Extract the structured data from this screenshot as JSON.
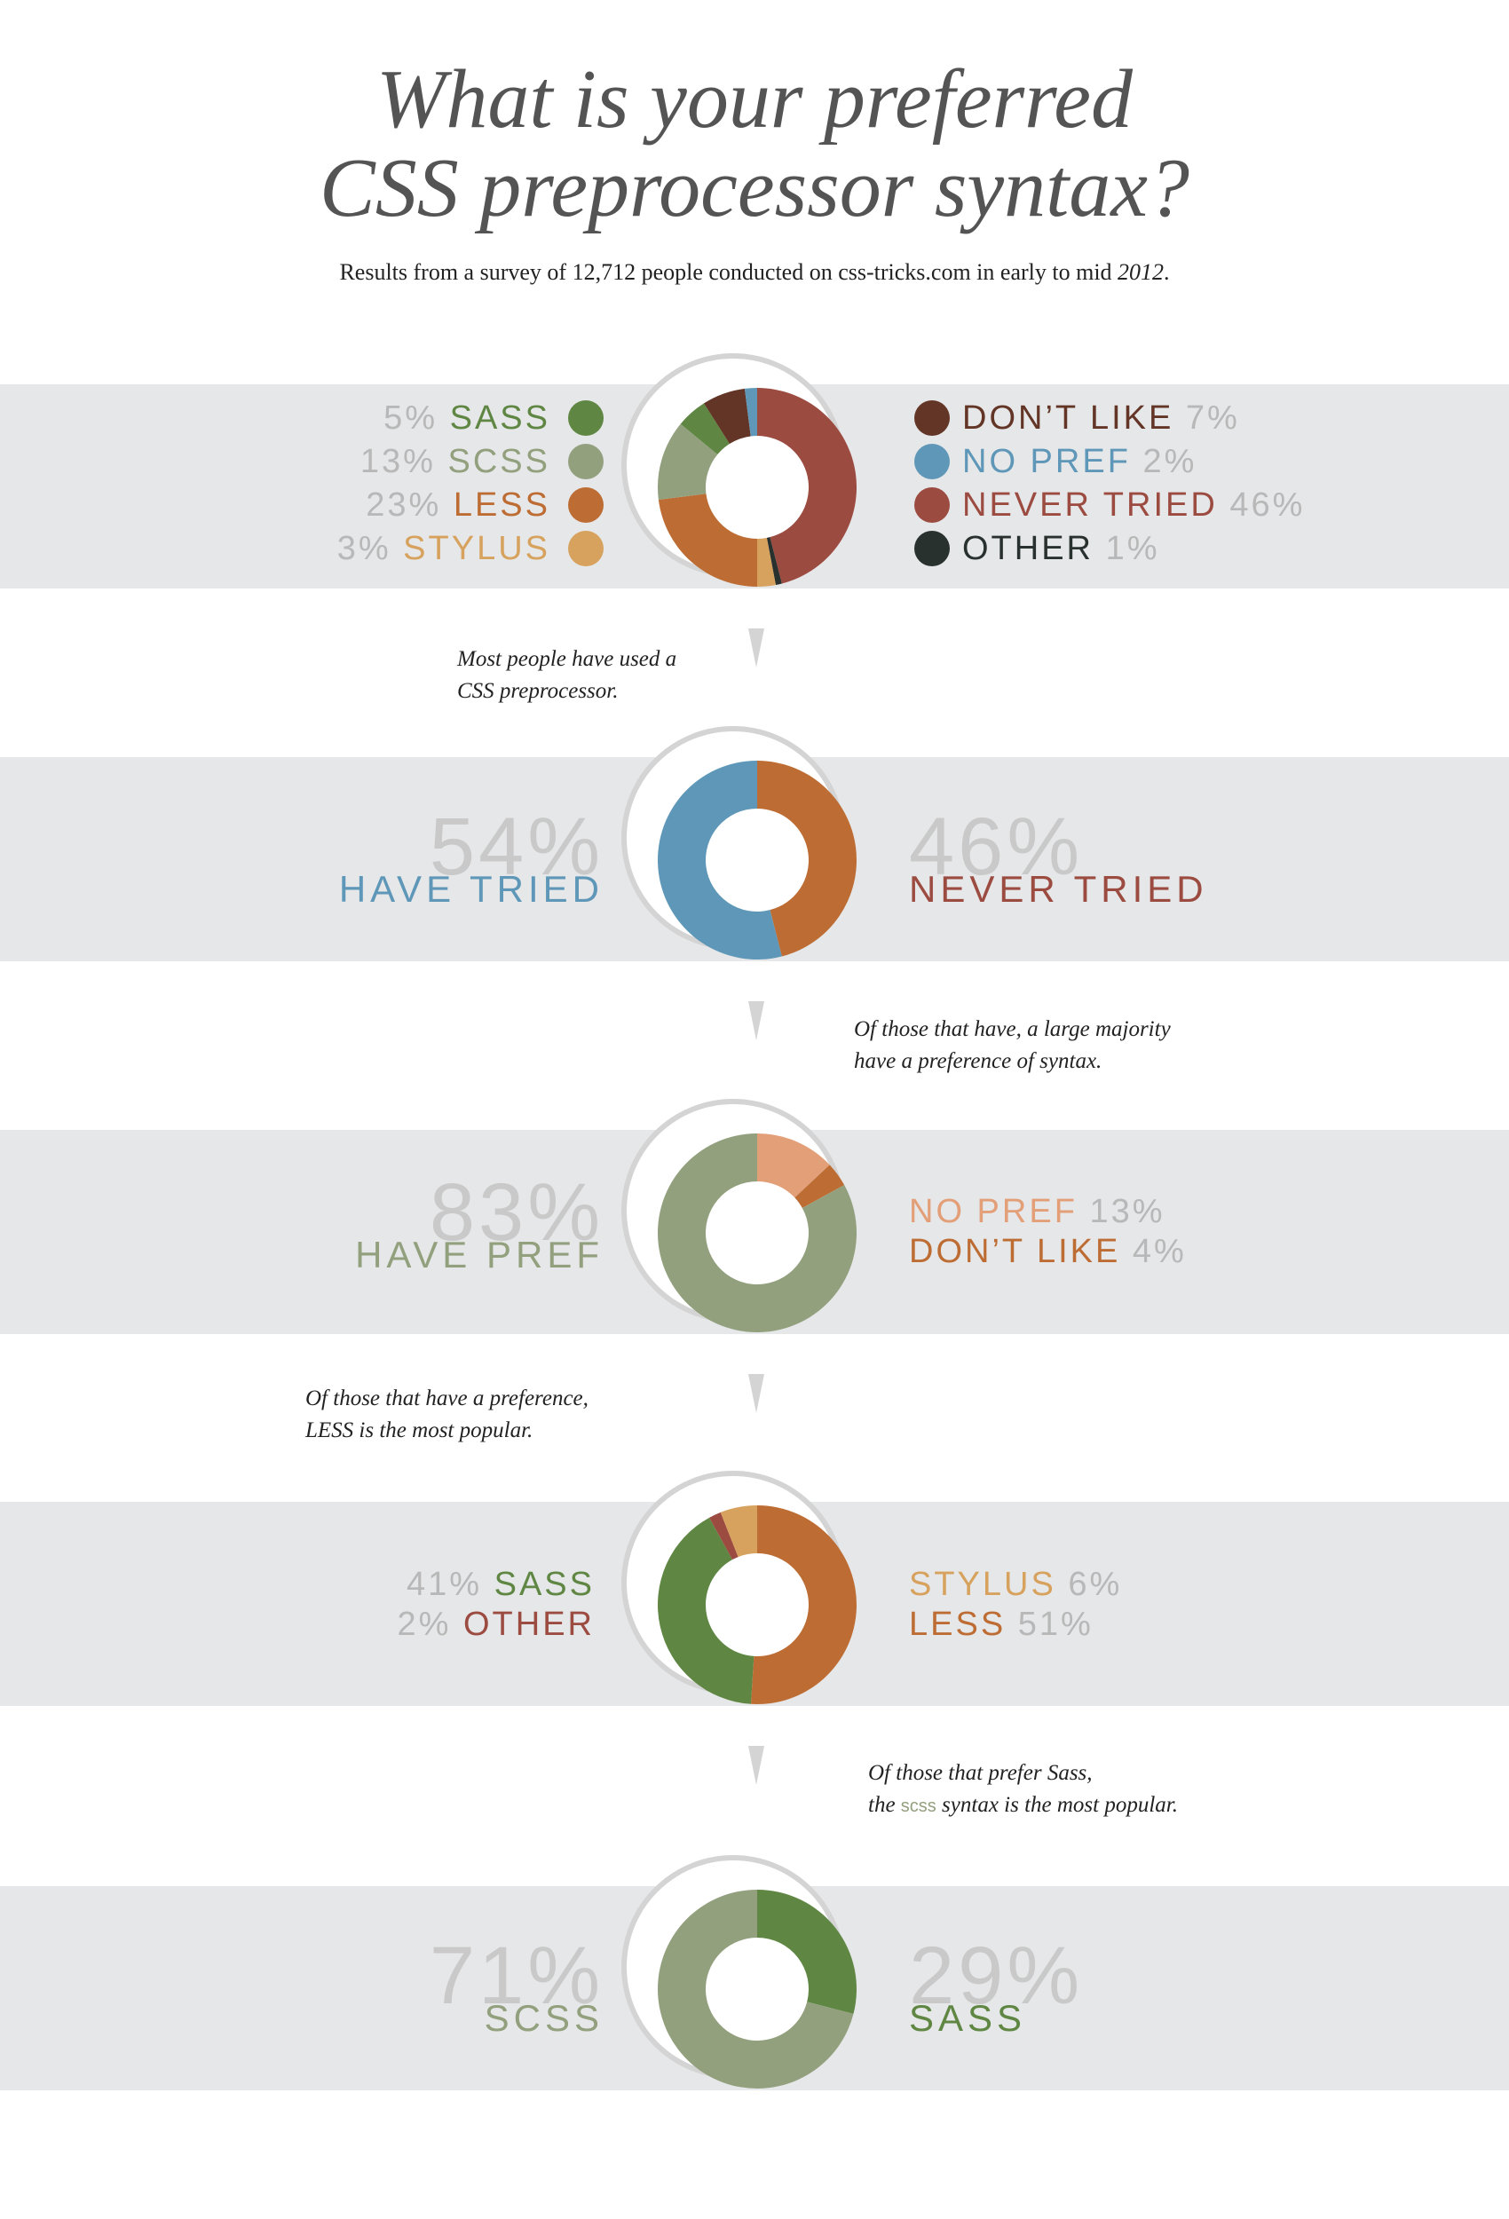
{
  "title_line1": "What is your preferred",
  "title_line2": "CSS preprocessor syntax?",
  "subtitle_a": "Results from a survey of 12,712 people conducted on css-tricks.com in early to mid ",
  "subtitle_year": "2012",
  "subtitle_end": ".",
  "colors": {
    "sass": "#5f8743",
    "scss": "#93a07e",
    "less": "#bd6d34",
    "stylus": "#d7a25e",
    "dont_like": "#633526",
    "no_pref": "#5f97b8",
    "never_tried": "#9c4b41",
    "other": "#29312e",
    "no_pref_light": "#e29f78",
    "number_grey": "#b8b8b8",
    "big_number_grey": "#c9c9c9"
  },
  "notes": {
    "n1_line1": "Most people have used a",
    "n1_line2": "CSS preprocessor.",
    "n2_line1": "Of those that have, a large majority",
    "n2_line2": "have a preference of syntax.",
    "n3_line1": "Of those that have a preference,",
    "n3_line2": "LESS is the most popular.",
    "n4_line1": "Of those that prefer Sass,",
    "n4_line2_a": "the ",
    "n4_line2_hl": "scss",
    "n4_line2_b": " syntax is the most popular."
  },
  "chart_data": [
    {
      "type": "pie",
      "left_legend": [
        {
          "pct": "5%",
          "label": "SASS",
          "key": "sass"
        },
        {
          "pct": "13%",
          "label": "SCSS",
          "key": "scss"
        },
        {
          "pct": "23%",
          "label": "LESS",
          "key": "less"
        },
        {
          "pct": "3%",
          "label": "STYLUS",
          "key": "stylus"
        }
      ],
      "right_legend": [
        {
          "pct": "7%",
          "label": "DON’T LIKE",
          "key": "dont_like"
        },
        {
          "pct": "2%",
          "label": "NO PREF",
          "key": "no_pref"
        },
        {
          "pct": "46%",
          "label": "NEVER TRIED",
          "key": "never_tried"
        },
        {
          "pct": "1%",
          "label": "OTHER",
          "key": "other"
        }
      ],
      "slices": [
        {
          "key": "never_tried",
          "value": 46
        },
        {
          "key": "other",
          "value": 1
        },
        {
          "key": "stylus",
          "value": 3
        },
        {
          "key": "less",
          "value": 23
        },
        {
          "key": "scss",
          "value": 13
        },
        {
          "key": "sass",
          "value": 5
        },
        {
          "key": "dont_like",
          "value": 7
        },
        {
          "key": "no_pref",
          "value": 2
        }
      ]
    },
    {
      "type": "pie",
      "left_pct": "54%",
      "left_label": "HAVE TRIED",
      "left_key": "no_pref",
      "right_pct": "46%",
      "right_label": "NEVER TRIED",
      "right_key": "never_tried",
      "slices": [
        {
          "key": "less",
          "value": 46
        },
        {
          "key": "no_pref",
          "value": 54
        }
      ]
    },
    {
      "type": "pie",
      "left_pct": "83%",
      "left_label": "HAVE PREF",
      "left_key": "scss",
      "right_items": [
        {
          "label": "NO PREF",
          "pct": "13%",
          "key": "no_pref_light"
        },
        {
          "label": "DON’T LIKE",
          "pct": "4%",
          "key": "less"
        }
      ],
      "slices": [
        {
          "key": "no_pref_light",
          "value": 13
        },
        {
          "key": "less",
          "value": 4
        },
        {
          "key": "scss",
          "value": 83
        }
      ]
    },
    {
      "type": "pie",
      "left_items": [
        {
          "pct": "41%",
          "label": "SASS",
          "key": "sass"
        },
        {
          "pct": "2%",
          "label": "OTHER",
          "key": "never_tried"
        }
      ],
      "right_items": [
        {
          "label": "STYLUS",
          "pct": "6%",
          "key": "stylus"
        },
        {
          "label": "LESS",
          "pct": "51%",
          "key": "less"
        }
      ],
      "slices": [
        {
          "key": "less",
          "value": 51
        },
        {
          "key": "sass",
          "value": 41
        },
        {
          "key": "never_tried",
          "value": 2
        },
        {
          "key": "stylus",
          "value": 6
        }
      ]
    },
    {
      "type": "pie",
      "left_pct": "71%",
      "left_label": "SCSS",
      "left_key": "scss",
      "right_pct": "29%",
      "right_label": "SASS",
      "right_key": "sass",
      "slices": [
        {
          "key": "sass",
          "value": 29
        },
        {
          "key": "scss",
          "value": 71
        }
      ]
    }
  ]
}
